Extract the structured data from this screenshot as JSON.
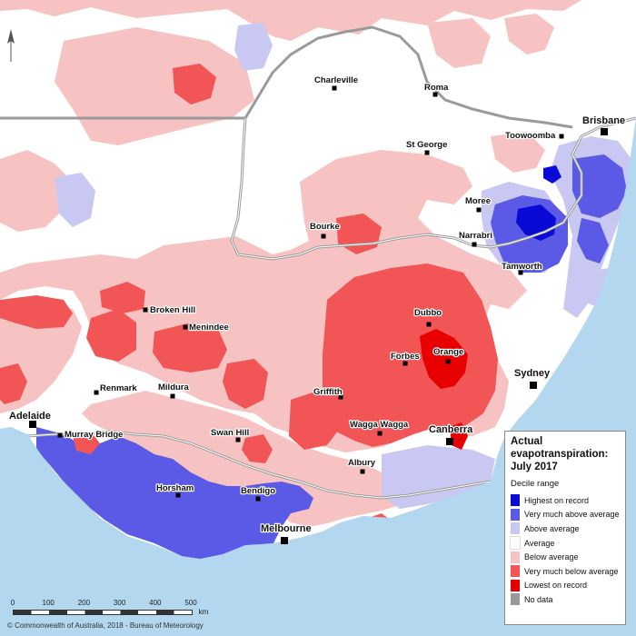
{
  "legend": {
    "title": "Actual evapotranspiration: July 2017",
    "subtitle": "Decile range",
    "items": [
      {
        "label": "Highest on record",
        "color": "#0a0ad6"
      },
      {
        "label": "Very much above average",
        "color": "#5a5ae6"
      },
      {
        "label": "Above average",
        "color": "#c8c8f2"
      },
      {
        "label": "Average",
        "color": "#ffffff"
      },
      {
        "label": "Below average",
        "color": "#f7c2c2"
      },
      {
        "label": "Very much below average",
        "color": "#f25555"
      },
      {
        "label": "Lowest on record",
        "color": "#e80000"
      },
      {
        "label": "No data",
        "color": "#999999"
      }
    ]
  },
  "places": [
    {
      "name": "Charleville"
    },
    {
      "name": "Roma"
    },
    {
      "name": "Brisbane"
    },
    {
      "name": "Toowoomba"
    },
    {
      "name": "St George"
    },
    {
      "name": "Moree"
    },
    {
      "name": "Bourke"
    },
    {
      "name": "Narrabri"
    },
    {
      "name": "Tamworth"
    },
    {
      "name": "Broken Hill"
    },
    {
      "name": "Menindee"
    },
    {
      "name": "Dubbo"
    },
    {
      "name": "Forbes"
    },
    {
      "name": "Orange"
    },
    {
      "name": "Renmark"
    },
    {
      "name": "Mildura"
    },
    {
      "name": "Sydney"
    },
    {
      "name": "Griffith"
    },
    {
      "name": "Adelaide"
    },
    {
      "name": "Murray Bridge"
    },
    {
      "name": "Swan Hill"
    },
    {
      "name": "Wagga Wagga"
    },
    {
      "name": "Canberra"
    },
    {
      "name": "Albury"
    },
    {
      "name": "Horsham"
    },
    {
      "name": "Bendigo"
    },
    {
      "name": "Melbourne"
    }
  ],
  "scale": {
    "ticks": [
      "0",
      "100",
      "200",
      "300",
      "400",
      "500"
    ],
    "unit": "km"
  },
  "copyright": "© Commonwealth of Australia, 2018 - Bureau of Meteorology",
  "colors": {
    "ocean": "#b3d7ee",
    "state_border": "#9a9a9a"
  }
}
